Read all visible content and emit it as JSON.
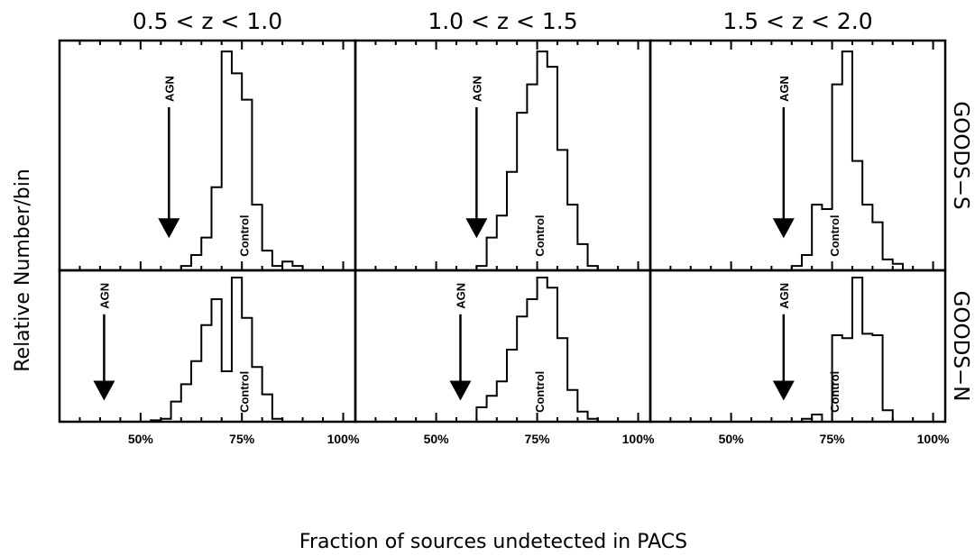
{
  "chart_data": {
    "type": "bar",
    "xlabel": "Fraction of sources undetected in PACS",
    "ylabel": "Relative Number/bin",
    "x_tick_labels": [
      "50%",
      "75%",
      "100%"
    ],
    "x_ticks": [
      50,
      75,
      100
    ],
    "xlim": [
      30,
      103
    ],
    "ylim": [
      0,
      1.05
    ],
    "bin_width": 2.5,
    "columns": [
      "0.5 < z < 1.0",
      "1.0 < z < 1.5",
      "1.5 < z < 2.0"
    ],
    "rows": [
      "GOODS−S",
      "GOODS−N"
    ],
    "panels": [
      {
        "field": "GOODS−S",
        "redshift": "0.5 < z < 1.0",
        "agn_label": "AGN",
        "control_label": "Control",
        "agn_value": 57,
        "edges": [
          60,
          62.5,
          65,
          67.5,
          70,
          72.5,
          75,
          77.5,
          80,
          82.5,
          85,
          87.5,
          90,
          92.5
        ],
        "values": [
          0.02,
          0.07,
          0.15,
          0.38,
          1.0,
          0.9,
          0.78,
          0.3,
          0.09,
          0.02,
          0.04,
          0.02,
          0.0
        ]
      },
      {
        "field": "GOODS−S",
        "redshift": "1.0 < z < 1.5",
        "agn_label": "AGN",
        "control_label": "Control",
        "agn_value": 60,
        "edges": [
          60,
          62.5,
          65,
          67.5,
          70,
          72.5,
          75,
          77.5,
          80,
          82.5,
          85,
          87.5,
          90,
          92.5,
          95
        ],
        "values": [
          0.02,
          0.15,
          0.25,
          0.45,
          0.72,
          0.85,
          1.0,
          0.93,
          0.55,
          0.3,
          0.12,
          0.02,
          0.0,
          0.0
        ]
      },
      {
        "field": "GOODS−S",
        "redshift": "1.5 < z < 2.0",
        "agn_label": "AGN",
        "control_label": "Control",
        "agn_value": 63,
        "edges": [
          65,
          67.5,
          70,
          72.5,
          75,
          77.5,
          80,
          82.5,
          85,
          87.5,
          90,
          92.5,
          95
        ],
        "values": [
          0.02,
          0.07,
          0.3,
          0.28,
          0.85,
          1.0,
          0.5,
          0.3,
          0.22,
          0.05,
          0.03,
          0.0
        ]
      },
      {
        "field": "GOODS−N",
        "redshift": "0.5 < z < 1.0",
        "agn_label": "AGN",
        "control_label": "Control",
        "agn_value": 41,
        "edges": [
          42.5,
          45,
          47.5,
          50,
          52.5,
          55,
          57.5,
          60,
          62.5,
          65,
          67.5,
          70,
          72.5,
          75,
          77.5,
          80,
          82.5,
          85,
          87.5,
          90,
          92.5
        ],
        "values": [
          0.0,
          0.0,
          0.0,
          0.0,
          0.01,
          0.02,
          0.14,
          0.26,
          0.42,
          0.67,
          0.85,
          0.35,
          1.0,
          0.72,
          0.38,
          0.19,
          0.02,
          0.0,
          0.0,
          0.0
        ]
      },
      {
        "field": "GOODS−N",
        "redshift": "1.0 < z < 1.5",
        "agn_label": "AGN",
        "control_label": "Control",
        "agn_value": 56,
        "edges": [
          60,
          62.5,
          65,
          67.5,
          70,
          72.5,
          75,
          77.5,
          80,
          82.5,
          85,
          87.5,
          90,
          92.5
        ],
        "values": [
          0.1,
          0.18,
          0.28,
          0.5,
          0.73,
          0.85,
          1.0,
          0.93,
          0.58,
          0.22,
          0.07,
          0.02,
          0.0
        ]
      },
      {
        "field": "GOODS−N",
        "redshift": "1.5 < z < 2.0",
        "agn_label": "AGN",
        "control_label": "Control",
        "agn_value": 63,
        "edges": [
          67.5,
          70,
          72.5,
          75,
          77.5,
          80,
          82.5,
          85,
          87.5,
          90,
          92.5,
          95
        ],
        "values": [
          0.02,
          0.05,
          0.0,
          0.6,
          0.58,
          1.0,
          0.61,
          0.6,
          0.08,
          0.0,
          0.0
        ]
      }
    ]
  }
}
